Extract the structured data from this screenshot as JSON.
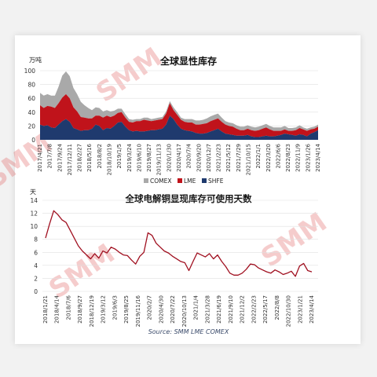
{
  "colors": {
    "comex": "#a9a9a9",
    "lme": "#c0131b",
    "shfe": "#1f3a6e",
    "line": "#a01020",
    "grid": "#e0e0e0"
  },
  "source": "Source: SMM LME COMEX",
  "chart_data": [
    {
      "type": "area",
      "title": "全球显性库存",
      "ylabel": "万吨",
      "ylim": [
        0,
        100
      ],
      "yticks": [
        0,
        20,
        40,
        60,
        80,
        100
      ],
      "x_ticks": [
        "2017/4/21",
        "2017/7/8",
        "2017/9/24",
        "2017/12/11",
        "2018/2/27",
        "2018/5/16",
        "2018/8/2",
        "2018/10/19",
        "2019/1/5",
        "2019/3/24",
        "2019/6/10",
        "2019/8/27",
        "2019/11/13",
        "2020/1/30",
        "2020/4/17",
        "2020/7/4",
        "2020/9/20",
        "2020/12/7",
        "2021/2/23",
        "2021/5/12",
        "2021/7/29",
        "2021/10/15",
        "2022/1/1",
        "2022/3/20",
        "2022/6/6",
        "2022/8/23",
        "2022/11/9",
        "2023/1/26",
        "2023/4/14"
      ],
      "legend": [
        "COMEX",
        "LME",
        "SHFE"
      ],
      "stacked": true,
      "series": [
        {
          "name": "SHFE",
          "values": [
            22,
            20,
            21,
            18,
            17,
            22,
            27,
            30,
            26,
            17,
            15,
            13,
            14,
            14,
            16,
            22,
            20,
            14,
            17,
            16,
            20,
            25,
            26,
            19,
            14,
            12,
            13,
            12,
            12,
            13,
            14,
            14,
            15,
            16,
            22,
            35,
            30,
            22,
            16,
            14,
            13,
            12,
            10,
            9,
            9,
            10,
            12,
            14,
            16,
            12,
            9,
            8,
            7,
            6,
            6,
            6,
            7,
            5,
            4,
            4,
            5,
            6,
            5,
            5,
            6,
            7,
            9,
            8,
            7,
            6,
            8,
            7,
            5,
            9,
            11,
            14
          ]
        },
        {
          "name": "LME",
          "values": [
            28,
            26,
            28,
            30,
            29,
            31,
            34,
            36,
            34,
            30,
            26,
            20,
            18,
            17,
            15,
            13,
            15,
            18,
            18,
            17,
            15,
            14,
            14,
            13,
            12,
            13,
            14,
            15,
            17,
            15,
            13,
            14,
            14,
            14,
            16,
            18,
            13,
            14,
            13,
            12,
            12,
            13,
            12,
            13,
            14,
            14,
            15,
            15,
            15,
            14,
            13,
            12,
            12,
            10,
            8,
            8,
            9,
            9,
            9,
            10,
            11,
            12,
            10,
            8,
            7,
            6,
            6,
            5,
            6,
            8,
            9,
            8,
            8,
            6,
            5,
            5
          ]
        },
        {
          "name": "COMEX",
          "values": [
            18,
            18,
            17,
            16,
            18,
            24,
            32,
            33,
            32,
            28,
            25,
            22,
            18,
            15,
            12,
            12,
            11,
            9,
            8,
            8,
            7,
            6,
            5,
            5,
            4,
            4,
            3,
            3,
            3,
            4,
            3,
            3,
            3,
            3,
            3,
            3,
            4,
            4,
            3,
            4,
            5,
            5,
            6,
            6,
            6,
            7,
            7,
            7,
            7,
            6,
            5,
            5,
            5,
            5,
            5,
            5,
            5,
            5,
            5,
            5,
            5,
            5,
            5,
            5,
            5,
            5,
            5,
            4,
            4,
            4,
            4,
            3,
            3,
            3,
            3,
            3
          ]
        }
      ]
    },
    {
      "type": "line",
      "title": "全球电解铜显现库存可使用天数",
      "ylabel": "天",
      "ylim": [
        0,
        14
      ],
      "yticks": [
        0,
        2,
        4,
        6,
        8,
        10,
        12,
        14
      ],
      "x_ticks": [
        "2018/1/21",
        "2018/4/14",
        "2018/7/6",
        "2018/9/27",
        "2018/12/19",
        "2019/3/12",
        "2019/6/3",
        "2019/8/25",
        "2019/11/16",
        "2020/2/7",
        "2020/4/30",
        "2020/7/22",
        "2020/10/13",
        "2021/1/4",
        "2021/3/28",
        "2021/6/19",
        "2021/9/10",
        "2021/12/2",
        "2022/2/23",
        "2022/5/17",
        "2022/8/8",
        "2022/10/30",
        "2023/1/21",
        "2023/4/14"
      ],
      "series": [
        {
          "name": "可使用天数",
          "values": [
            8.2,
            10.4,
            12.4,
            11.8,
            11.0,
            10.6,
            9.4,
            8.2,
            7.0,
            6.2,
            5.6,
            5.0,
            5.8,
            5.1,
            6.2,
            5.9,
            6.8,
            6.5,
            6.0,
            5.6,
            5.5,
            4.8,
            4.2,
            5.4,
            6.0,
            9.0,
            8.6,
            7.4,
            6.8,
            6.2,
            5.9,
            5.4,
            5.0,
            4.6,
            4.4,
            3.2,
            4.6,
            5.9,
            5.6,
            5.3,
            5.8,
            5.0,
            5.6,
            4.6,
            3.8,
            2.8,
            2.5,
            2.5,
            2.8,
            3.4,
            4.2,
            4.1,
            3.6,
            3.3,
            3.0,
            2.8,
            3.3,
            3.0,
            2.6,
            2.8,
            3.1,
            2.3,
            3.9,
            4.3,
            3.2,
            3.0
          ]
        }
      ]
    }
  ]
}
